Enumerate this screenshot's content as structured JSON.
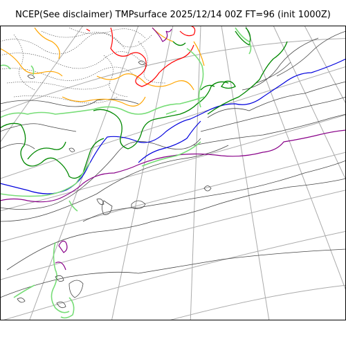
{
  "title": "NCEP(See disclaimer) TMPsurface 2025/12/14 00Z FT=96 (init 1000Z)",
  "map": {
    "variable": "TMPsurface",
    "projection": "polar stereographic",
    "graticule_color": "#aaaaaa",
    "contour_colors": {
      "default": "#444444",
      "blue": "#0000dd",
      "purple": "#880088",
      "green": "#008800",
      "lightgreen": "#77dd77",
      "orange": "#ffa500",
      "red": "#ff0000"
    }
  }
}
